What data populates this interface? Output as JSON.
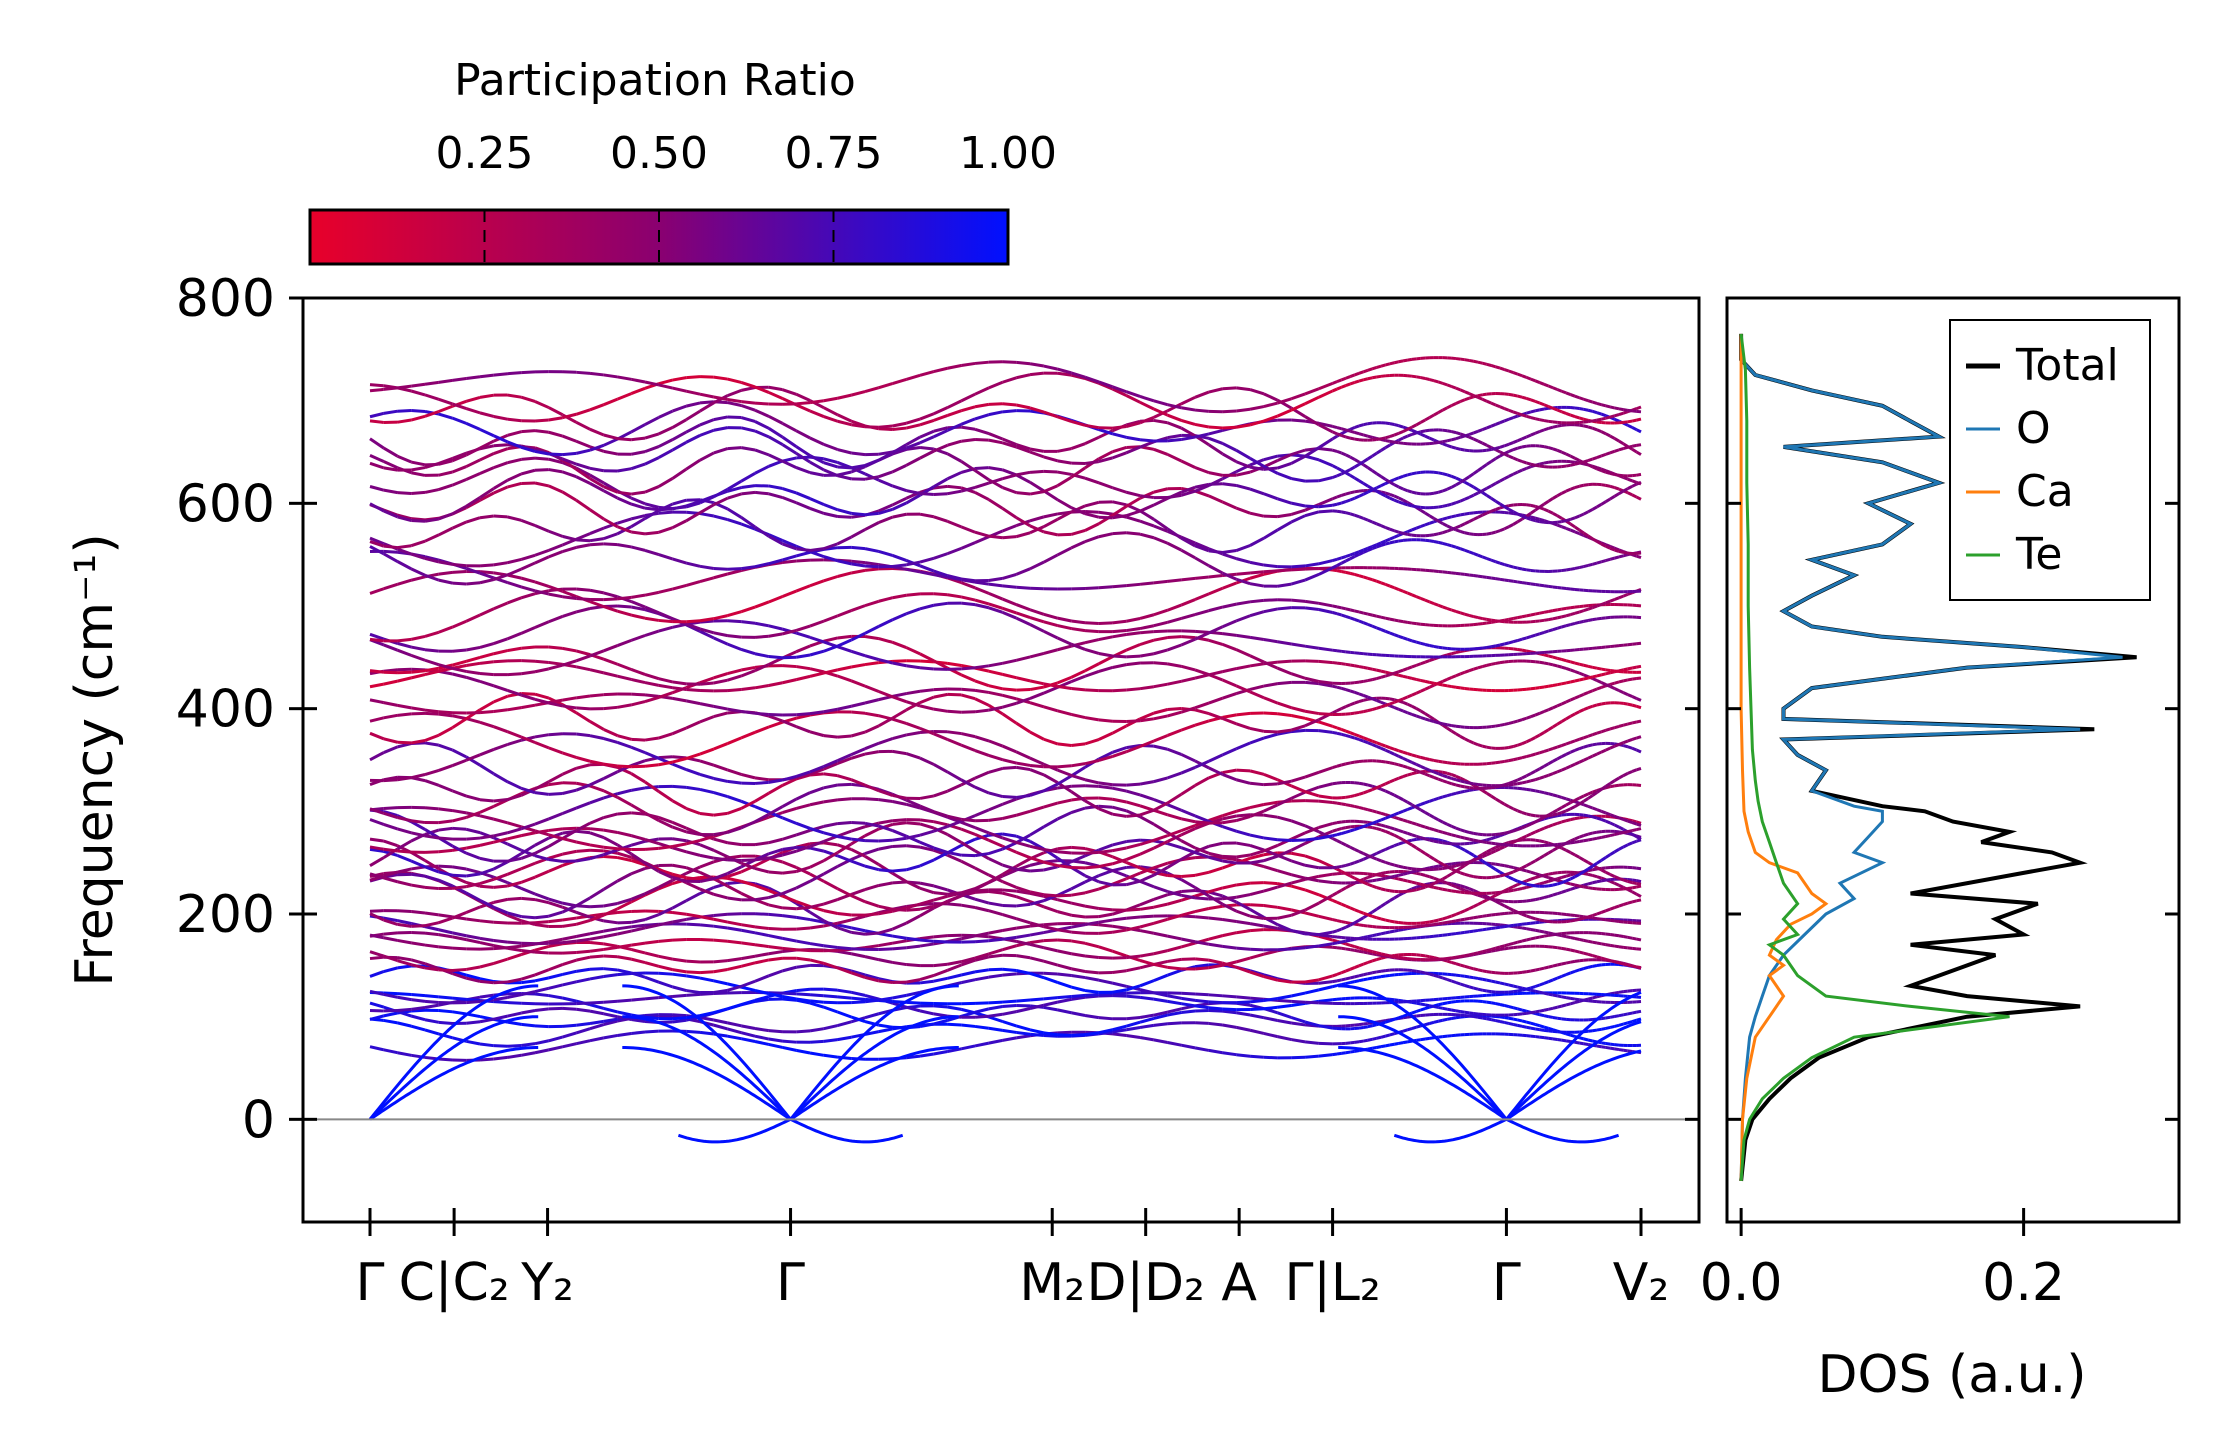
{
  "chart_data": [
    {
      "type": "line",
      "subtype": "phonon-band-structure",
      "title": "",
      "ylabel": "Frequency (cm⁻¹)",
      "ylim": [
        -100,
        800
      ],
      "yticks": [
        0,
        200,
        400,
        600,
        800
      ],
      "path_positions": [
        0.0,
        0.045,
        0.095,
        0.225,
        0.365,
        0.415,
        0.465,
        0.515,
        0.608,
        0.68
      ],
      "path_labels": [
        "Γ",
        "C|C₂",
        "Y₂",
        "Γ",
        "M₂",
        "D|D₂",
        "A",
        "Γ|L₂",
        "Γ",
        "V₂"
      ],
      "path_segments": [
        [
          0.0,
          0.515
        ],
        [
          0.515,
          0.68
        ]
      ],
      "segment_breaks": [
        0.515
      ],
      "colorbar": {
        "label": "Participation Ratio",
        "range": [
          0.0,
          1.0
        ],
        "ticks": [
          "0.25",
          "0.50",
          "0.75",
          "1.00"
        ],
        "tick_values": [
          0.25,
          0.5,
          0.75,
          1.0
        ],
        "colors": [
          "#e8002a",
          "#8a0070",
          "#0010ff"
        ]
      },
      "branch_frequencies": [
        72,
        86,
        96,
        103,
        112,
        118,
        128,
        138,
        148,
        160,
        170,
        178,
        186,
        196,
        206,
        214,
        222,
        230,
        240,
        246,
        254,
        262,
        270,
        278,
        286,
        298,
        304,
        322,
        340,
        352,
        370,
        388,
        405,
        420,
        432,
        445,
        460,
        476,
        492,
        510,
        528,
        545,
        565,
        578,
        596,
        608,
        622,
        636,
        648,
        660,
        672,
        688,
        700,
        715
      ],
      "acoustic_modes": {
        "gamma_value": 0,
        "min_value": -22
      }
    },
    {
      "type": "line",
      "subtype": "density-of-states",
      "xlabel": "DOS (a.u.)",
      "xlim": [
        -0.01,
        0.31
      ],
      "xticks": [
        0.0,
        0.2
      ],
      "xtick_labels": [
        "0.0",
        "0.2"
      ],
      "ylim": [
        -100,
        800
      ],
      "legend": {
        "position": "top-right",
        "entries": [
          "Total",
          "O",
          "Ca",
          "Te"
        ]
      },
      "series": [
        {
          "name": "Total",
          "color": "#000000",
          "points": [
            [
              -60,
              0.0
            ],
            [
              -20,
              0.003
            ],
            [
              0,
              0.008
            ],
            [
              20,
              0.02
            ],
            [
              40,
              0.035
            ],
            [
              60,
              0.055
            ],
            [
              80,
              0.09
            ],
            [
              100,
              0.16
            ],
            [
              110,
              0.24
            ],
            [
              120,
              0.16
            ],
            [
              130,
              0.12
            ],
            [
              140,
              0.14
            ],
            [
              160,
              0.18
            ],
            [
              170,
              0.12
            ],
            [
              180,
              0.2
            ],
            [
              195,
              0.18
            ],
            [
              210,
              0.21
            ],
            [
              220,
              0.12
            ],
            [
              240,
              0.2
            ],
            [
              250,
              0.24
            ],
            [
              260,
              0.22
            ],
            [
              270,
              0.17
            ],
            [
              280,
              0.19
            ],
            [
              290,
              0.15
            ],
            [
              300,
              0.13
            ],
            [
              305,
              0.1
            ],
            [
              320,
              0.05
            ],
            [
              340,
              0.06
            ],
            [
              355,
              0.04
            ],
            [
              370,
              0.03
            ],
            [
              380,
              0.25
            ],
            [
              390,
              0.03
            ],
            [
              400,
              0.03
            ],
            [
              420,
              0.05
            ],
            [
              440,
              0.16
            ],
            [
              450,
              0.28
            ],
            [
              460,
              0.2
            ],
            [
              470,
              0.1
            ],
            [
              480,
              0.05
            ],
            [
              495,
              0.03
            ],
            [
              510,
              0.05
            ],
            [
              530,
              0.08
            ],
            [
              545,
              0.05
            ],
            [
              560,
              0.1
            ],
            [
              580,
              0.12
            ],
            [
              600,
              0.09
            ],
            [
              620,
              0.14
            ],
            [
              640,
              0.1
            ],
            [
              655,
              0.03
            ],
            [
              665,
              0.14
            ],
            [
              680,
              0.12
            ],
            [
              695,
              0.1
            ],
            [
              710,
              0.05
            ],
            [
              725,
              0.01
            ],
            [
              740,
              0.0
            ],
            [
              765,
              0.0
            ]
          ]
        },
        {
          "name": "O",
          "color": "#1f77b4",
          "points": [
            [
              -60,
              0.0
            ],
            [
              0,
              0.001
            ],
            [
              40,
              0.003
            ],
            [
              80,
              0.006
            ],
            [
              100,
              0.01
            ],
            [
              120,
              0.015
            ],
            [
              140,
              0.02
            ],
            [
              160,
              0.03
            ],
            [
              180,
              0.045
            ],
            [
              200,
              0.06
            ],
            [
              215,
              0.08
            ],
            [
              230,
              0.07
            ],
            [
              250,
              0.1
            ],
            [
              260,
              0.08
            ],
            [
              275,
              0.09
            ],
            [
              290,
              0.1
            ],
            [
              300,
              0.1
            ],
            [
              305,
              0.08
            ],
            [
              320,
              0.05
            ],
            [
              340,
              0.06
            ],
            [
              355,
              0.04
            ],
            [
              370,
              0.03
            ],
            [
              380,
              0.24
            ],
            [
              390,
              0.03
            ],
            [
              400,
              0.03
            ],
            [
              420,
              0.05
            ],
            [
              440,
              0.16
            ],
            [
              450,
              0.27
            ],
            [
              460,
              0.2
            ],
            [
              470,
              0.1
            ],
            [
              480,
              0.05
            ],
            [
              495,
              0.03
            ],
            [
              510,
              0.05
            ],
            [
              530,
              0.08
            ],
            [
              545,
              0.05
            ],
            [
              560,
              0.1
            ],
            [
              580,
              0.12
            ],
            [
              600,
              0.09
            ],
            [
              620,
              0.14
            ],
            [
              640,
              0.1
            ],
            [
              655,
              0.03
            ],
            [
              665,
              0.14
            ],
            [
              680,
              0.12
            ],
            [
              695,
              0.1
            ],
            [
              710,
              0.05
            ],
            [
              725,
              0.01
            ],
            [
              740,
              0.0
            ],
            [
              765,
              0.0
            ]
          ]
        },
        {
          "name": "Ca",
          "color": "#ff7f0e",
          "points": [
            [
              -60,
              0.0
            ],
            [
              0,
              0.001
            ],
            [
              40,
              0.004
            ],
            [
              80,
              0.01
            ],
            [
              100,
              0.02
            ],
            [
              120,
              0.03
            ],
            [
              140,
              0.02
            ],
            [
              150,
              0.03
            ],
            [
              160,
              0.02
            ],
            [
              175,
              0.025
            ],
            [
              190,
              0.035
            ],
            [
              200,
              0.05
            ],
            [
              210,
              0.06
            ],
            [
              220,
              0.05
            ],
            [
              240,
              0.04
            ],
            [
              250,
              0.02
            ],
            [
              260,
              0.01
            ],
            [
              280,
              0.005
            ],
            [
              300,
              0.002
            ],
            [
              340,
              0.001
            ],
            [
              400,
              0.0
            ],
            [
              765,
              0.0
            ]
          ]
        },
        {
          "name": "Te",
          "color": "#2ca02c",
          "points": [
            [
              -60,
              0.0
            ],
            [
              -20,
              0.002
            ],
            [
              0,
              0.006
            ],
            [
              20,
              0.015
            ],
            [
              40,
              0.03
            ],
            [
              60,
              0.05
            ],
            [
              80,
              0.08
            ],
            [
              100,
              0.19
            ],
            [
              110,
              0.12
            ],
            [
              120,
              0.06
            ],
            [
              140,
              0.04
            ],
            [
              160,
              0.03
            ],
            [
              170,
              0.02
            ],
            [
              180,
              0.04
            ],
            [
              195,
              0.03
            ],
            [
              210,
              0.04
            ],
            [
              230,
              0.03
            ],
            [
              250,
              0.025
            ],
            [
              270,
              0.02
            ],
            [
              290,
              0.015
            ],
            [
              310,
              0.012
            ],
            [
              330,
              0.01
            ],
            [
              360,
              0.008
            ],
            [
              400,
              0.007
            ],
            [
              440,
              0.006
            ],
            [
              500,
              0.005
            ],
            [
              560,
              0.005
            ],
            [
              620,
              0.004
            ],
            [
              680,
              0.004
            ],
            [
              730,
              0.003
            ],
            [
              765,
              0.0
            ]
          ]
        }
      ]
    }
  ]
}
